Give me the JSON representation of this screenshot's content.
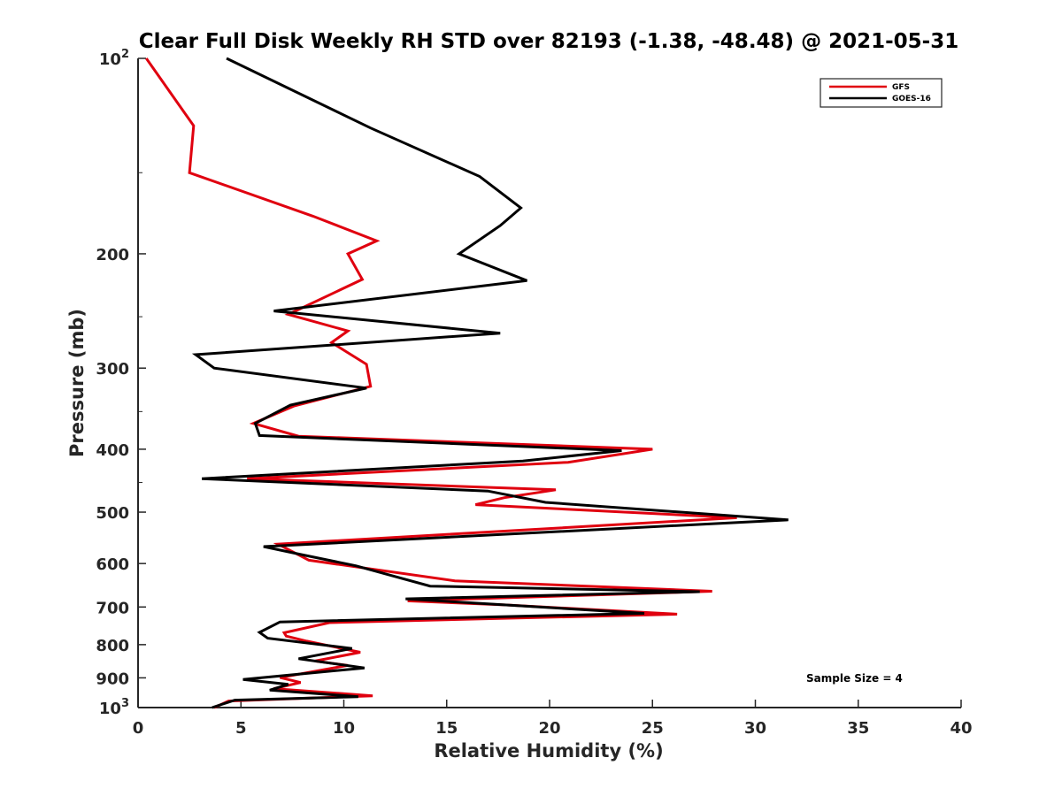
{
  "chart_data": {
    "type": "line",
    "title": "Clear Full Disk Weekly RH STD over 82193 (-1.38, -48.48) @ 2021-05-31",
    "xlabel": "Relative Humidity (%)",
    "ylabel": "Pressure (mb)",
    "xlim": [
      0,
      40
    ],
    "ylim": [
      100,
      1000
    ],
    "yscale": "log",
    "y_reversed": true,
    "x_ticks": [
      "0",
      "5",
      "10",
      "15",
      "20",
      "25",
      "30",
      "35",
      "40"
    ],
    "y_ticks": [
      {
        "value": 100,
        "label": "10",
        "sup": "2"
      },
      {
        "value": 200,
        "label": "200",
        "sup": ""
      },
      {
        "value": 300,
        "label": "300",
        "sup": ""
      },
      {
        "value": 400,
        "label": "400",
        "sup": ""
      },
      {
        "value": 500,
        "label": "500",
        "sup": ""
      },
      {
        "value": 600,
        "label": "600",
        "sup": ""
      },
      {
        "value": 700,
        "label": "700",
        "sup": ""
      },
      {
        "value": 800,
        "label": "800",
        "sup": ""
      },
      {
        "value": 900,
        "label": "900",
        "sup": ""
      },
      {
        "value": 1000,
        "label": "10",
        "sup": "3"
      }
    ],
    "legend_position": "top-right",
    "annotation": "Sample Size = 4",
    "series": [
      {
        "name": "GFS",
        "color": "#e0000f",
        "points": [
          [
            0.4,
            100
          ],
          [
            2.7,
            127
          ],
          [
            2.5,
            150
          ],
          [
            8.5,
            175
          ],
          [
            11.6,
            191
          ],
          [
            10.2,
            200
          ],
          [
            10.9,
            219
          ],
          [
            7.3,
            248
          ],
          [
            10.2,
            263
          ],
          [
            9.4,
            274
          ],
          [
            11.1,
            296
          ],
          [
            11.3,
            320
          ],
          [
            7.6,
            343
          ],
          [
            5.6,
            365
          ],
          [
            7.8,
            382
          ],
          [
            25.0,
            400
          ],
          [
            20.9,
            419
          ],
          [
            5.3,
            444
          ],
          [
            20.3,
            462
          ],
          [
            17.8,
            475
          ],
          [
            16.4,
            487
          ],
          [
            29.1,
            510
          ],
          [
            6.8,
            560
          ],
          [
            8.3,
            593
          ],
          [
            15.4,
            638
          ],
          [
            27.9,
            662
          ],
          [
            13.1,
            685
          ],
          [
            17.9,
            695
          ],
          [
            26.2,
            718
          ],
          [
            9.3,
            740
          ],
          [
            7.1,
            767
          ],
          [
            7.2,
            776
          ],
          [
            8.2,
            790
          ],
          [
            10.8,
            822
          ],
          [
            8.6,
            848
          ],
          [
            10.2,
            861
          ],
          [
            6.9,
            899
          ],
          [
            7.9,
            915
          ],
          [
            6.6,
            935
          ],
          [
            11.4,
            959
          ],
          [
            4.4,
            977
          ],
          [
            3.7,
            1000
          ]
        ]
      },
      {
        "name": "GOES-16",
        "color": "#000000",
        "points": [
          [
            4.3,
            100
          ],
          [
            11.3,
            128
          ],
          [
            16.6,
            152
          ],
          [
            18.6,
            170
          ],
          [
            17.6,
            181
          ],
          [
            15.6,
            200
          ],
          [
            18.9,
            220
          ],
          [
            6.6,
            245
          ],
          [
            17.6,
            265
          ],
          [
            2.8,
            286
          ],
          [
            3.7,
            300
          ],
          [
            11.1,
            322
          ],
          [
            7.4,
            342
          ],
          [
            5.7,
            365
          ],
          [
            5.9,
            381
          ],
          [
            23.5,
            402
          ],
          [
            18.7,
            417
          ],
          [
            3.1,
            444
          ],
          [
            17.0,
            464
          ],
          [
            19.8,
            483
          ],
          [
            31.6,
            514
          ],
          [
            6.1,
            565
          ],
          [
            7.9,
            581
          ],
          [
            10.6,
            605
          ],
          [
            14.2,
            650
          ],
          [
            27.3,
            663
          ],
          [
            13.0,
            680
          ],
          [
            24.6,
            716
          ],
          [
            6.9,
            738
          ],
          [
            5.9,
            766
          ],
          [
            6.3,
            782
          ],
          [
            10.4,
            811
          ],
          [
            7.8,
            841
          ],
          [
            11.0,
            869
          ],
          [
            5.1,
            905
          ],
          [
            7.3,
            921
          ],
          [
            6.4,
            940
          ],
          [
            10.7,
            962
          ],
          [
            4.7,
            974
          ],
          [
            3.6,
            1000
          ]
        ]
      }
    ]
  }
}
